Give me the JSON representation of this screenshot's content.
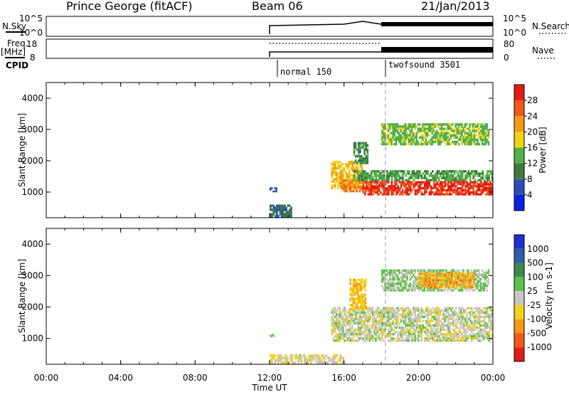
{
  "header": {
    "station": "Prince George (fitACF)",
    "beam": "Beam 06",
    "date": "21/Jan/2013"
  },
  "labels": {
    "nsky": "N.Sky",
    "freq": "Freq.",
    "mhz": "[MHz]",
    "cpid": "CPID",
    "nsearch": "N.Search",
    "nave": "Nave",
    "nsky_top": "10^5",
    "nsky_bottom": "10^0",
    "freq_top": "18",
    "freq_bottom": "8",
    "nave_top": "80",
    "nave_bottom": "0",
    "nsearch_top": "10^5",
    "nsearch_bottom": "10^0"
  },
  "cpid_segments": [
    {
      "start": "12:00",
      "label": "normal 150"
    },
    {
      "start": "18:00",
      "label": "twofsound 3501"
    }
  ],
  "panels": {
    "power": {
      "ylabel": "Slant Range [km]",
      "yticks": [
        "1000",
        "2000",
        "3000",
        "4000"
      ],
      "colorbar_label": "Power [dB]",
      "colorbar_ticks": [
        "4",
        "8",
        "12",
        "16",
        "20",
        "24",
        "28"
      ],
      "colors": [
        "#0a22e6",
        "#2a4db8",
        "#3f7a3c",
        "#53b04a",
        "#f2d21a",
        "#f39a16",
        "#ef5a18",
        "#e21d18"
      ]
    },
    "velocity": {
      "ylabel": "Slant Range [km]",
      "yticks": [
        "1000",
        "2000",
        "3000",
        "4000"
      ],
      "colorbar_label": "Velocity [m s-1]",
      "colorbar_ticks": [
        "1000",
        "500",
        "100",
        "25",
        "-25",
        "-100",
        "-500",
        "-1000"
      ],
      "colors": [
        "#1f2fd0",
        "#2d5ea8",
        "#3f8a4c",
        "#5fc24a",
        "#c8c6c0",
        "#f2d21a",
        "#f39a16",
        "#ef5a18",
        "#e21d18"
      ]
    }
  },
  "xaxis": {
    "label": "Time UT",
    "ticks": [
      "00:00",
      "04:00",
      "08:00",
      "12:00",
      "16:00",
      "20:00",
      "00:00"
    ]
  },
  "chart_data": [
    {
      "type": "heatmap",
      "title": "Power",
      "x_unit": "UT hours",
      "y_unit": "km",
      "xlim": [
        0,
        24
      ],
      "ylim": [
        180,
        4500
      ],
      "z_range": [
        0,
        30
      ],
      "regions": [
        {
          "x": [
            12.0,
            13.2
          ],
          "y": [
            200,
            600
          ],
          "z": 8
        },
        {
          "x": [
            12.0,
            12.4
          ],
          "y": [
            1000,
            1150
          ],
          "z": 6
        },
        {
          "x": [
            15.3,
            17.0
          ],
          "y": [
            1100,
            2000
          ],
          "z": 18
        },
        {
          "x": [
            15.8,
            17.8
          ],
          "y": [
            1000,
            1400
          ],
          "z": 22
        },
        {
          "x": [
            16.5,
            24.0
          ],
          "y": [
            1350,
            1700
          ],
          "z": 12
        },
        {
          "x": [
            17.0,
            24.0
          ],
          "y": [
            900,
            1350
          ],
          "z": 27
        },
        {
          "x": [
            18.0,
            23.8
          ],
          "y": [
            2500,
            3200
          ],
          "z": 14
        },
        {
          "x": [
            16.5,
            17.3
          ],
          "y": [
            1900,
            2600
          ],
          "z": 10
        }
      ]
    },
    {
      "type": "heatmap",
      "title": "Velocity",
      "x_unit": "UT hours",
      "y_unit": "km",
      "xlim": [
        0,
        24
      ],
      "ylim": [
        180,
        4500
      ],
      "z_range": [
        -1000,
        1000
      ],
      "regions": [
        {
          "x": [
            12.0,
            16.0
          ],
          "y": [
            200,
            500
          ],
          "z": -60
        },
        {
          "x": [
            12.0,
            12.3
          ],
          "y": [
            1050,
            1150
          ],
          "z": 60
        },
        {
          "x": [
            15.3,
            24.0
          ],
          "y": [
            900,
            2000
          ],
          "z": 0
        },
        {
          "x": [
            16.3,
            17.2
          ],
          "y": [
            1900,
            2900
          ],
          "z": -300
        },
        {
          "x": [
            18.0,
            23.8
          ],
          "y": [
            2500,
            3200
          ],
          "z": 120
        },
        {
          "x": [
            20.0,
            23.0
          ],
          "y": [
            2600,
            3100
          ],
          "z": -400
        }
      ]
    }
  ]
}
